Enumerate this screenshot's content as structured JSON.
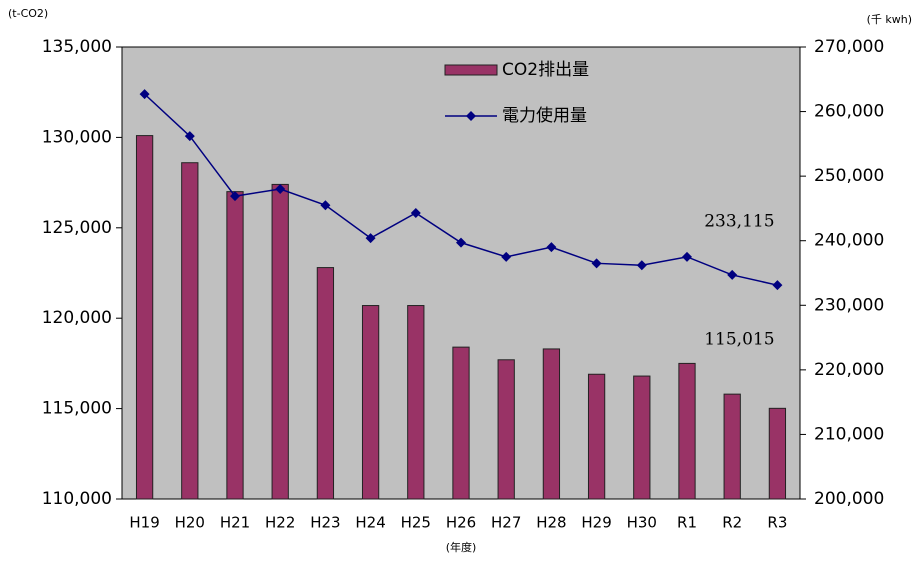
{
  "chart_data": {
    "type": "bar-line",
    "ylabel": "(t-CO2)",
    "y2label": "(千 kwh)",
    "xlabel": "(年度)",
    "categories": [
      "H19",
      "H20",
      "H21",
      "H22",
      "H23",
      "H24",
      "H25",
      "H26",
      "H27",
      "H28",
      "H29",
      "H30",
      "R1",
      "R2",
      "R3"
    ],
    "series": [
      {
        "name": "CO2排出量",
        "type": "bar",
        "color": "#993366",
        "axis": "y",
        "values": [
          130100,
          128600,
          127000,
          127400,
          122800,
          120700,
          120700,
          118400,
          117700,
          118300,
          116900,
          116800,
          117500,
          115800,
          115015
        ],
        "value_labels": [
          null,
          null,
          null,
          null,
          null,
          null,
          null,
          null,
          null,
          null,
          null,
          null,
          null,
          null,
          "115,015"
        ]
      },
      {
        "name": "電力使用量",
        "type": "line",
        "color": "#000080",
        "axis": "y2",
        "values": [
          262700,
          256200,
          246900,
          248000,
          245500,
          240400,
          244300,
          239700,
          237500,
          239000,
          236500,
          236200,
          237500,
          234700,
          233115
        ],
        "value_labels": [
          null,
          null,
          null,
          null,
          null,
          null,
          null,
          null,
          null,
          null,
          null,
          null,
          null,
          null,
          "233,115"
        ]
      }
    ],
    "ylim": [
      110000,
      135000
    ],
    "yticks": [
      {
        "value": 110000,
        "label": "110,000"
      },
      {
        "value": 115000,
        "label": "115,000"
      },
      {
        "value": 120000,
        "label": "120,000"
      },
      {
        "value": 125000,
        "label": "125,000"
      },
      {
        "value": 130000,
        "label": "130,000"
      },
      {
        "value": 135000,
        "label": "135,000"
      }
    ],
    "y2lim": [
      200000,
      270000
    ],
    "y2ticks": [
      {
        "value": 200000,
        "label": "200,000"
      },
      {
        "value": 210000,
        "label": "210,000"
      },
      {
        "value": 220000,
        "label": "220,000"
      },
      {
        "value": 230000,
        "label": "230,000"
      },
      {
        "value": 240000,
        "label": "240,000"
      },
      {
        "value": 250000,
        "label": "250,000"
      },
      {
        "value": 260000,
        "label": "260,000"
      },
      {
        "value": 270000,
        "label": "270,000"
      }
    ],
    "plot_background": "#c0c0c0"
  }
}
